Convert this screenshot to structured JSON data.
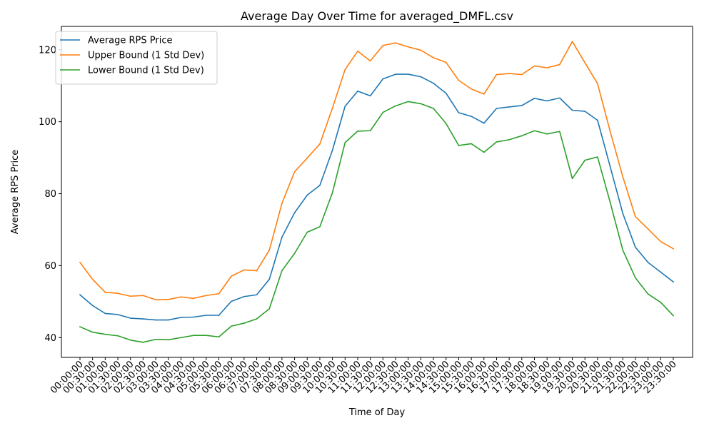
{
  "chart_data": {
    "type": "line",
    "title": "Average Day Over Time for averaged_DMFL.csv",
    "xlabel": "Time of Day",
    "ylabel": "Average RPS Price",
    "ylim": [
      34.5,
      126.5
    ],
    "yticks": [
      40,
      60,
      80,
      100,
      120
    ],
    "grid": false,
    "legend_position": "top-left",
    "categories": [
      "00:00:00",
      "00:30:00",
      "01:00:00",
      "01:30:00",
      "02:00:00",
      "02:30:00",
      "03:00:00",
      "03:30:00",
      "04:00:00",
      "04:30:00",
      "05:00:00",
      "05:30:00",
      "06:00:00",
      "06:30:00",
      "07:00:00",
      "07:30:00",
      "08:00:00",
      "08:30:00",
      "09:00:00",
      "09:30:00",
      "10:00:00",
      "10:30:00",
      "11:00:00",
      "11:30:00",
      "12:00:00",
      "12:30:00",
      "13:00:00",
      "13:30:00",
      "14:00:00",
      "14:30:00",
      "15:00:00",
      "15:30:00",
      "16:00:00",
      "16:30:00",
      "17:00:00",
      "17:30:00",
      "18:00:00",
      "18:30:00",
      "19:00:00",
      "19:30:00",
      "20:00:00",
      "20:30:00",
      "21:00:00",
      "21:30:00",
      "22:00:00",
      "22:30:00",
      "23:00:00",
      "23:30:00"
    ],
    "series": [
      {
        "name": "Average RPS Price",
        "color": "#1f77b4",
        "values": [
          51.9,
          48.9,
          46.7,
          46.4,
          45.4,
          45.2,
          44.9,
          44.9,
          45.6,
          45.7,
          46.2,
          46.2,
          50.1,
          51.4,
          51.9,
          56.2,
          67.9,
          74.7,
          79.6,
          82.3,
          92.1,
          104.3,
          108.5,
          107.2,
          111.9,
          113.2,
          113.2,
          112.5,
          110.7,
          107.9,
          102.5,
          101.5,
          99.6,
          103.7,
          104.1,
          104.5,
          106.5,
          105.8,
          106.6,
          103.2,
          102.9,
          100.4,
          87.5,
          74.5,
          65.1,
          60.9,
          58.2,
          55.5
        ]
      },
      {
        "name": "Upper Bound (1 Std Dev)",
        "color": "#ff7f0e",
        "values": [
          60.9,
          56.2,
          52.6,
          52.3,
          51.5,
          51.7,
          50.5,
          50.6,
          51.3,
          50.9,
          51.7,
          52.2,
          57.1,
          58.8,
          58.6,
          64.3,
          77.3,
          86.1,
          89.9,
          93.8,
          103.8,
          114.5,
          119.6,
          116.9,
          121.2,
          121.9,
          120.8,
          119.9,
          117.8,
          116.5,
          111.5,
          109.1,
          107.7,
          113.1,
          113.4,
          113.1,
          115.5,
          115.0,
          115.9,
          122.3,
          116.4,
          110.6,
          97.3,
          84.7,
          73.6,
          70.2,
          66.7,
          64.7
        ]
      },
      {
        "name": "Lower Bound (1 Std Dev)",
        "color": "#2ca02c",
        "values": [
          43.0,
          41.5,
          40.9,
          40.5,
          39.3,
          38.7,
          39.5,
          39.4,
          40.0,
          40.6,
          40.6,
          40.2,
          43.2,
          44.0,
          45.2,
          48.0,
          58.6,
          63.4,
          69.3,
          70.8,
          80.3,
          94.2,
          97.4,
          97.5,
          102.6,
          104.4,
          105.6,
          105.0,
          103.7,
          99.5,
          93.4,
          93.9,
          91.5,
          94.4,
          95.0,
          96.1,
          97.5,
          96.6,
          97.3,
          84.2,
          89.3,
          90.2,
          77.6,
          64.3,
          56.6,
          52.1,
          49.8,
          46.1
        ]
      }
    ]
  }
}
